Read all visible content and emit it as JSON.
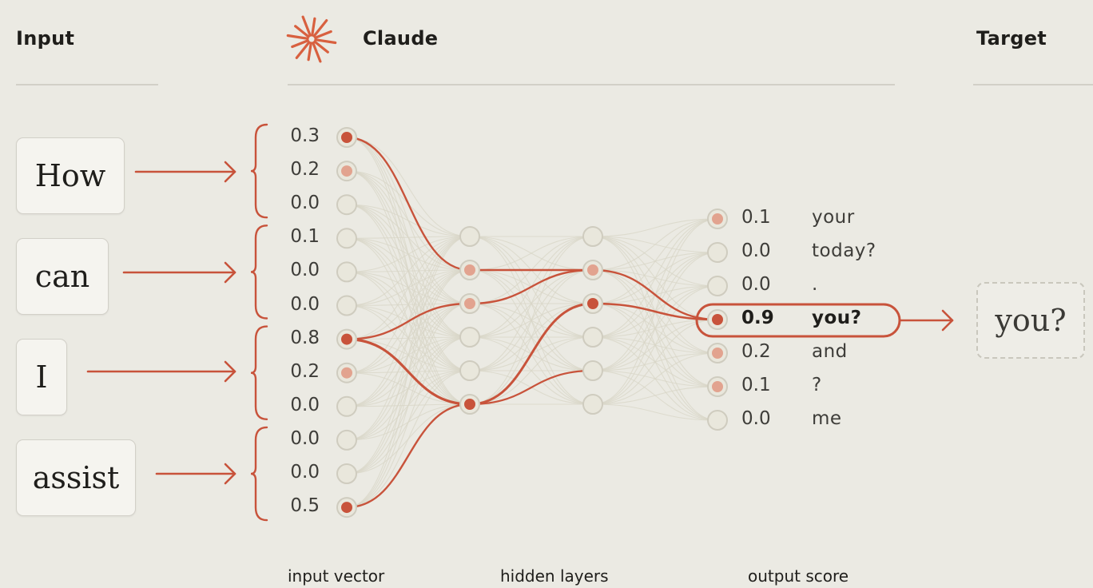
{
  "header": {
    "input_title": "Input",
    "model_title": "Claude",
    "target_title": "Target",
    "logo_icon": "claude-starburst-icon"
  },
  "input_tokens": [
    "How",
    "can",
    "I",
    "assist"
  ],
  "input_vector": [
    "0.3",
    "0.2",
    "0.0",
    "0.1",
    "0.0",
    "0.0",
    "0.8",
    "0.2",
    "0.0",
    "0.0",
    "0.0",
    "0.5"
  ],
  "output_scores": [
    {
      "value": "0.1",
      "label": "your"
    },
    {
      "value": "0.0",
      "label": "today?"
    },
    {
      "value": "0.0",
      "label": "."
    },
    {
      "value": "0.9",
      "label": "you?"
    },
    {
      "value": "0.2",
      "label": "and"
    },
    {
      "value": "0.1",
      "label": "?"
    },
    {
      "value": "0.0",
      "label": "me"
    }
  ],
  "target": {
    "label": "you?"
  },
  "axis_labels": {
    "input": "input vector",
    "hidden": "hidden layers",
    "output": "output score"
  },
  "colors": {
    "background": "#ebeae3",
    "accent": "#c8533b",
    "node_fill": "#e9e7dc",
    "node_stroke": "#cfccbf",
    "faint_line": "#d9d6c9"
  }
}
